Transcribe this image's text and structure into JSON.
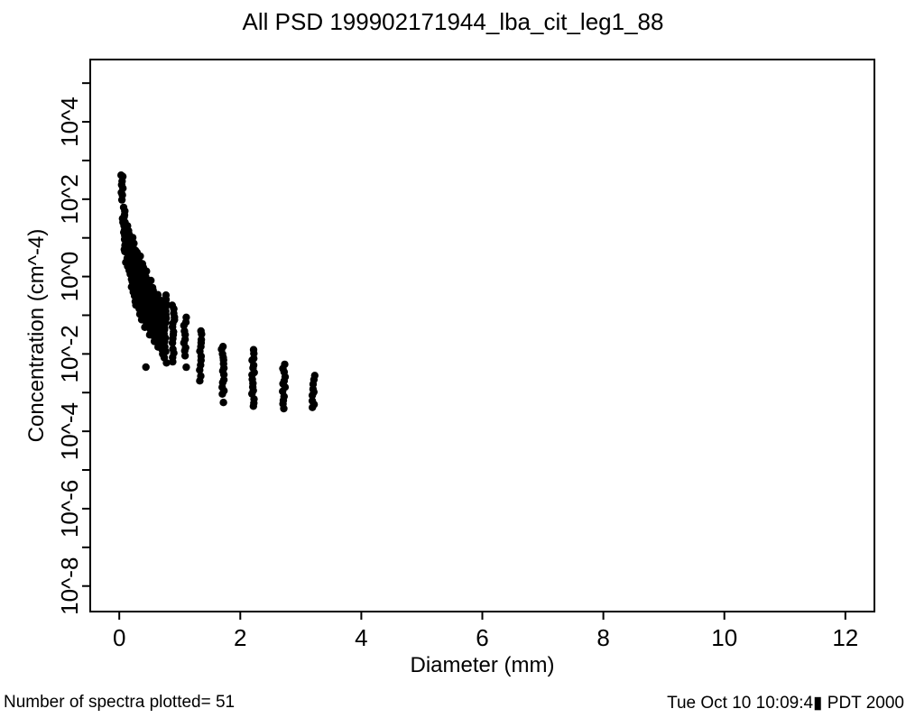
{
  "figure": {
    "title": "All PSD 199902171944_lba_cit_leg1_88",
    "footer_left": "Number of spectra plotted= 51",
    "footer_right": "Tue Oct 10 10:09:4▮ PDT 2000",
    "background_color": "#ffffff",
    "foreground_color": "#000000"
  },
  "chart_data": {
    "type": "scatter",
    "title": "All PSD 199902171944_lba_cit_leg1_88",
    "xlabel": "Diameter (mm)",
    "ylabel": "Concentration (cm^-4)",
    "legend": "none",
    "grid": false,
    "n_spectra": 51,
    "x_axis": {
      "min": -0.48,
      "max": 12.48,
      "ticks": [
        0,
        2,
        4,
        6,
        8,
        10,
        12
      ]
    },
    "y_axis": {
      "scale": "log10",
      "max_exp": 5.61,
      "min_exp": -8.66,
      "tick_exponents": [
        5,
        4,
        3,
        2,
        1,
        0,
        -1,
        -2,
        -3,
        -4,
        -5,
        -6,
        -7,
        -8
      ],
      "labeled": [
        {
          "exp": 4,
          "label": "10^4"
        },
        {
          "exp": 2,
          "label": "10^2"
        },
        {
          "exp": 0,
          "label": "10^0"
        },
        {
          "exp": -2,
          "label": "10^-2"
        },
        {
          "exp": -4,
          "label": "10^-4"
        },
        {
          "exp": -6,
          "label": "10^-6"
        },
        {
          "exp": -8,
          "label": "10^-8"
        }
      ]
    },
    "marker": {
      "shape": "circle",
      "color": "#000000",
      "radius_px": 4.2
    },
    "bins_note": "each bin: diameter d (mm) with vertical runs [log10C_top, log10C_bottom, n_points]",
    "bins": [
      {
        "d": 0.05,
        "runs": [
          [
            2.65,
            2.0,
            8
          ]
        ]
      },
      {
        "d": 0.07,
        "runs": [
          [
            1.8,
            0.95,
            10
          ]
        ]
      },
      {
        "d": 0.1,
        "runs": [
          [
            1.52,
            0.62,
            10
          ]
        ]
      },
      {
        "d": 0.13,
        "runs": [
          [
            1.33,
            0.35,
            11
          ]
        ]
      },
      {
        "d": 0.16,
        "runs": [
          [
            1.18,
            0.05,
            12
          ]
        ]
      },
      {
        "d": 0.2,
        "runs": [
          [
            1.02,
            -0.25,
            14
          ]
        ]
      },
      {
        "d": 0.24,
        "runs": [
          [
            0.86,
            -0.5,
            15
          ]
        ]
      },
      {
        "d": 0.28,
        "runs": [
          [
            0.7,
            -0.75,
            16
          ]
        ]
      },
      {
        "d": 0.33,
        "runs": [
          [
            0.52,
            -0.95,
            16
          ]
        ]
      },
      {
        "d": 0.38,
        "runs": [
          [
            0.33,
            -1.12,
            16
          ]
        ]
      },
      {
        "d": 0.44,
        "runs": [
          [
            0.12,
            -1.3,
            15
          ]
        ]
      },
      {
        "d": 0.5,
        "runs": [
          [
            -0.08,
            -1.48,
            15
          ]
        ]
      },
      {
        "d": 0.57,
        "runs": [
          [
            -0.28,
            -1.66,
            14
          ]
        ]
      },
      {
        "d": 0.64,
        "runs": [
          [
            -0.47,
            -1.85,
            13
          ]
        ]
      },
      {
        "d": 0.71,
        "runs": [
          [
            -0.65,
            -2.0,
            12
          ]
        ]
      },
      {
        "d": 0.76,
        "runs": [
          [
            -0.5,
            -1.8,
            14
          ],
          [
            -1.95,
            -2.22,
            3
          ]
        ]
      },
      {
        "d": 0.89,
        "runs": [
          [
            -0.72,
            -1.72,
            11
          ],
          [
            -1.85,
            -2.18,
            4
          ]
        ]
      },
      {
        "d": 1.09,
        "runs": [
          [
            -1.08,
            -2.02,
            10
          ],
          [
            -2.36,
            -2.36,
            1
          ]
        ]
      },
      {
        "d": 1.34,
        "runs": [
          [
            -1.41,
            -2.26,
            9
          ],
          [
            -2.42,
            -2.72,
            3
          ]
        ]
      },
      {
        "d": 1.71,
        "runs": [
          [
            -1.78,
            -3.05,
            14
          ],
          [
            -3.27,
            -3.27,
            1
          ]
        ]
      },
      {
        "d": 2.21,
        "runs": [
          [
            -1.9,
            -3.34,
            16
          ]
        ]
      },
      {
        "d": 2.72,
        "runs": [
          [
            -2.26,
            -3.39,
            12
          ]
        ]
      },
      {
        "d": 3.21,
        "runs": [
          [
            -2.57,
            -3.41,
            9
          ]
        ]
      }
    ],
    "extra_points": [
      [
        0.44,
        -2.34
      ]
    ]
  }
}
